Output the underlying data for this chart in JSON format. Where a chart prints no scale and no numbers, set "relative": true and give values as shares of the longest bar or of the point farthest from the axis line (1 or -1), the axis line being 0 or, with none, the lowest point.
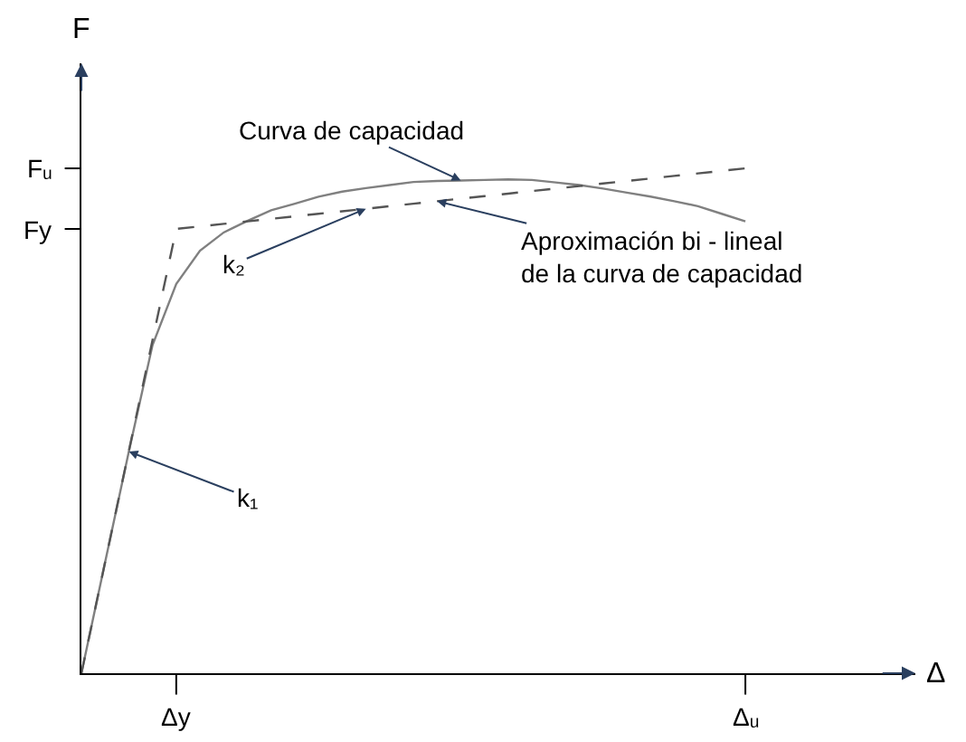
{
  "chart_data": {
    "type": "line",
    "relative": true,
    "ylabel": "F",
    "categories": [
      null,
      null,
      null,
      null,
      null,
      null,
      null,
      null,
      null,
      null,
      null,
      null,
      null,
      null,
      null,
      null,
      null,
      null,
      null,
      null,
      null,
      null,
      null,
      null,
      null,
      null,
      null,
      null,
      null
    ],
    "series": [
      {
        "color": "#808080",
        "line_style": "solid",
        "values": [
          0,
          0.22,
          0.439,
          0.65,
          0.771,
          0.837,
          0.873,
          0.896,
          0.917,
          0.93,
          0.944,
          0.954,
          0.961,
          0.967,
          0.973,
          0.975,
          0.976,
          0.977,
          0.978,
          0.977,
          0.972,
          0.967,
          0.96,
          0.952,
          0.944,
          0.935,
          0.925,
          0.91,
          0.895
        ]
      },
      {
        "color": "#555555",
        "line_style": "dashed",
        "values": [
          0,
          0.22,
          0.44,
          0.66,
          0.88,
          0.885,
          0.89,
          0.895,
          0.9,
          0.905,
          0.91,
          0.915,
          0.92,
          0.925,
          0.93,
          0.935,
          0.94,
          0.945,
          0.95,
          0.955,
          0.96,
          0.965,
          0.97,
          0.975,
          0.98,
          0.985,
          0.99,
          0.995,
          1.0
        ]
      }
    ],
    "annotations": [
      "Δ",
      "Fᵤ",
      "Fy",
      "Δy",
      "Δᵤ",
      "Curva de capacidad",
      "k₂",
      "Aproximación bi - lineal\nde la curva de capacidad",
      "k₁"
    ],
    "marker": "none"
  }
}
